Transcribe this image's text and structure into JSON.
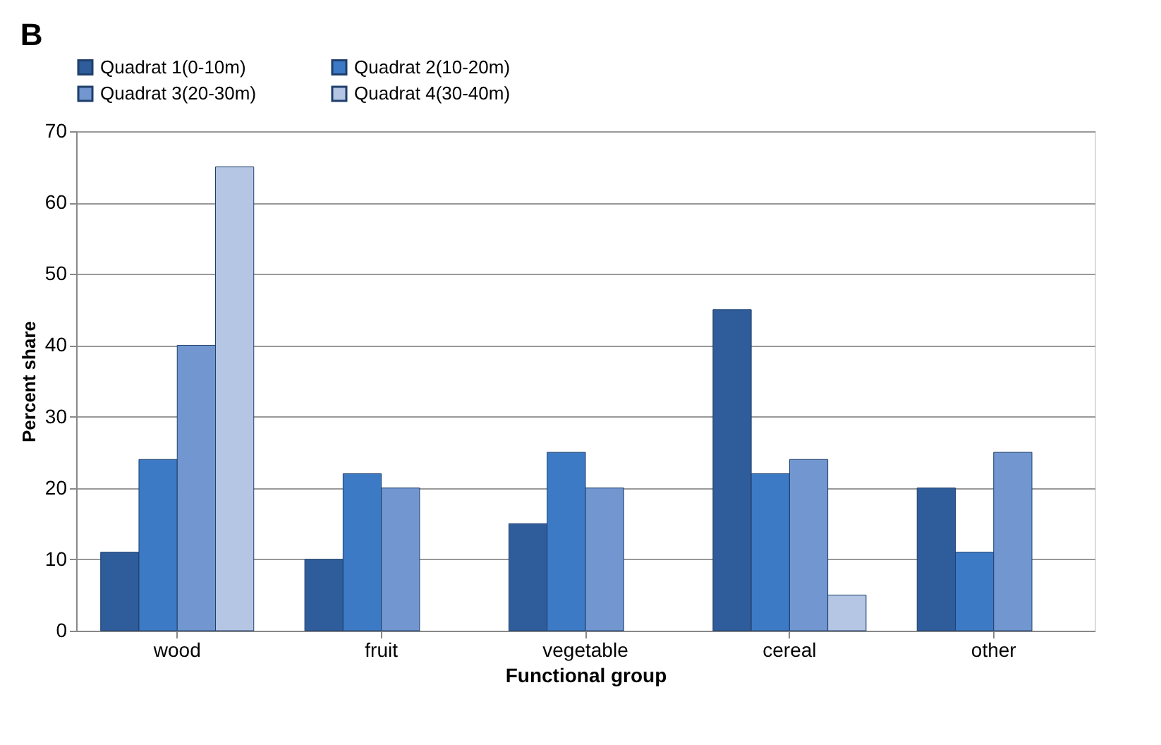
{
  "chart_data": {
    "type": "bar",
    "title": "B",
    "xlabel": "Functional group",
    "ylabel": "Percent share",
    "categories": [
      "wood",
      "fruit",
      "vegetable",
      "cereal",
      "other"
    ],
    "series": [
      {
        "name": "Quadrat 1(0-10m)",
        "color": "#2f5d9b",
        "values": [
          11,
          10,
          15,
          45,
          20
        ]
      },
      {
        "name": "Quadrat 2(10-20m)",
        "color": "#3c7ac6",
        "values": [
          24,
          22,
          25,
          22,
          11
        ]
      },
      {
        "name": "Quadrat 3(20-30m)",
        "color": "#7196d0",
        "values": [
          40,
          20,
          20,
          24,
          25
        ]
      },
      {
        "name": "Quadrat 4(30-40m)",
        "color": "#b5c5e4",
        "values": [
          65,
          null,
          null,
          5,
          null
        ]
      }
    ],
    "ylim": [
      0,
      70
    ],
    "yticks": [
      0,
      10,
      20,
      30,
      40,
      50,
      60,
      70
    ],
    "grid": "y",
    "legend": "top"
  }
}
